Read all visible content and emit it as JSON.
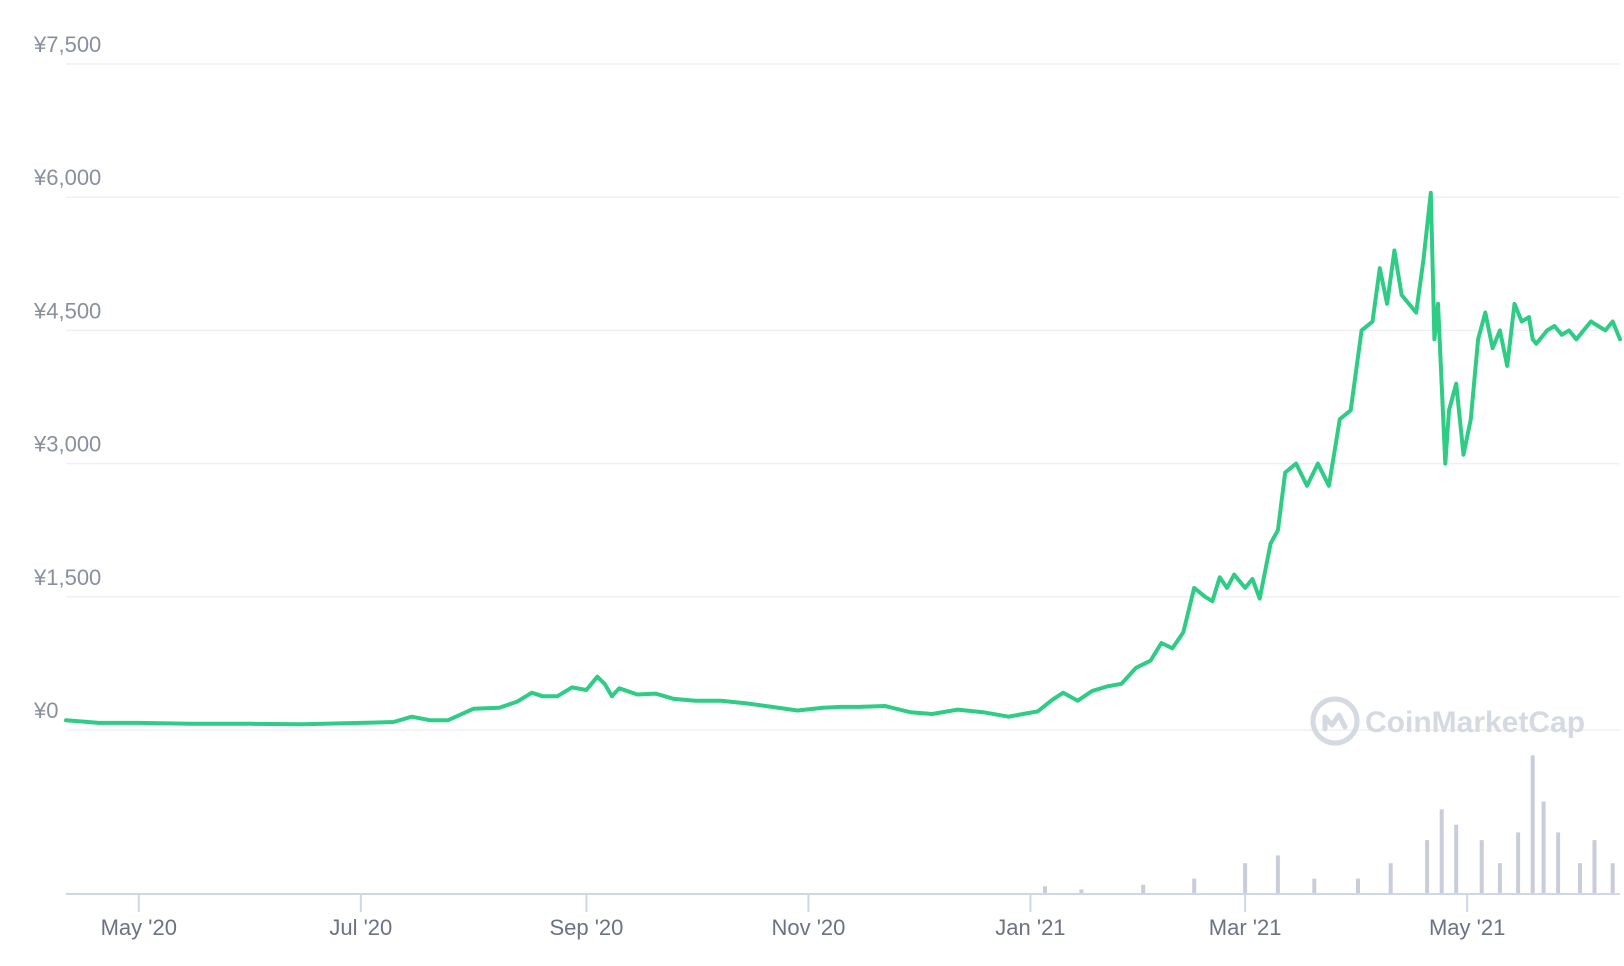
{
  "brand": {
    "name": "CoinMarketCap",
    "icon": "coinmarketcap-logo-icon"
  },
  "colors": {
    "line": "#2ecc85",
    "volume": "#c9cdd9",
    "grid": "#eef0f3",
    "axis": "#cfd6e4",
    "tick_text": "#8a8f9e"
  },
  "chart_data": {
    "type": "line",
    "title": "",
    "xlabel": "",
    "ylabel": "",
    "y_ticks": [
      "¥0",
      "¥1,500",
      "¥3,000",
      "¥4,500",
      "¥6,000",
      "¥7,500"
    ],
    "y_tick_values": [
      0,
      1500,
      3000,
      4500,
      6000,
      7500
    ],
    "x_ticks": [
      "May '20",
      "Jul '20",
      "Sep '20",
      "Nov '20",
      "Jan '21",
      "Mar '21",
      "May '21"
    ],
    "x_tick_dates": [
      "2020-05-01",
      "2020-07-01",
      "2020-09-01",
      "2020-11-01",
      "2021-01-01",
      "2021-03-01",
      "2021-05-01"
    ],
    "xlim": [
      "2020-04-11",
      "2021-06-12"
    ],
    "ylim": [
      0,
      7500
    ],
    "grid": true,
    "series": [
      {
        "type": "line",
        "x": [
          "2020-04-11",
          "2020-04-20",
          "2020-05-01",
          "2020-05-15",
          "2020-06-01",
          "2020-06-15",
          "2020-07-01",
          "2020-07-10",
          "2020-07-15",
          "2020-07-20",
          "2020-07-25",
          "2020-08-01",
          "2020-08-08",
          "2020-08-13",
          "2020-08-17",
          "2020-08-20",
          "2020-08-24",
          "2020-08-28",
          "2020-09-01",
          "2020-09-04",
          "2020-09-06",
          "2020-09-08",
          "2020-09-10",
          "2020-09-15",
          "2020-09-20",
          "2020-09-25",
          "2020-10-01",
          "2020-10-08",
          "2020-10-15",
          "2020-10-22",
          "2020-10-29",
          "2020-11-05",
          "2020-11-10",
          "2020-11-15",
          "2020-11-22",
          "2020-11-29",
          "2020-12-05",
          "2020-12-12",
          "2020-12-19",
          "2020-12-26",
          "2020-12-30",
          "2021-01-03",
          "2021-01-07",
          "2021-01-10",
          "2021-01-14",
          "2021-01-18",
          "2021-01-22",
          "2021-01-26",
          "2021-01-30",
          "2021-02-03",
          "2021-02-06",
          "2021-02-09",
          "2021-02-12",
          "2021-02-15",
          "2021-02-18",
          "2021-02-20",
          "2021-02-22",
          "2021-02-24",
          "2021-02-26",
          "2021-03-01",
          "2021-03-03",
          "2021-03-05",
          "2021-03-08",
          "2021-03-10",
          "2021-03-12",
          "2021-03-15",
          "2021-03-18",
          "2021-03-21",
          "2021-03-24",
          "2021-03-27",
          "2021-03-30",
          "2021-04-02",
          "2021-04-05",
          "2021-04-07",
          "2021-04-09",
          "2021-04-11",
          "2021-04-13",
          "2021-04-15",
          "2021-04-17",
          "2021-04-19",
          "2021-04-21",
          "2021-04-22",
          "2021-04-23",
          "2021-04-25",
          "2021-04-26",
          "2021-04-28",
          "2021-04-30",
          "2021-05-02",
          "2021-05-04",
          "2021-05-06",
          "2021-05-08",
          "2021-05-10",
          "2021-05-12",
          "2021-05-14",
          "2021-05-16",
          "2021-05-18",
          "2021-05-19",
          "2021-05-20",
          "2021-05-21",
          "2021-05-23",
          "2021-05-25",
          "2021-05-27",
          "2021-05-29",
          "2021-05-31",
          "2021-06-02",
          "2021-06-04",
          "2021-06-06",
          "2021-06-08",
          "2021-06-10",
          "2021-06-12"
        ],
        "y": [
          110,
          80,
          80,
          70,
          70,
          65,
          80,
          90,
          150,
          110,
          110,
          240,
          250,
          320,
          420,
          380,
          380,
          480,
          450,
          600,
          520,
          380,
          470,
          400,
          410,
          350,
          330,
          330,
          300,
          260,
          220,
          250,
          260,
          260,
          270,
          200,
          180,
          230,
          200,
          150,
          180,
          210,
          340,
          420,
          330,
          440,
          490,
          520,
          700,
          780,
          980,
          920,
          1100,
          1600,
          1500,
          1450,
          1720,
          1600,
          1750,
          1600,
          1700,
          1480,
          2100,
          2250,
          2900,
          3000,
          2750,
          3000,
          2750,
          3500,
          3600,
          4500,
          4600,
          5200,
          4800,
          5400,
          4900,
          4800,
          4700,
          5300,
          6050,
          4400,
          4800,
          3000,
          3600,
          3900,
          3100,
          3500,
          4400,
          4700,
          4300,
          4500,
          4100,
          4800,
          4600,
          4650,
          4400,
          4350,
          4400,
          4500,
          4550,
          4450,
          4500,
          4400,
          4500,
          4600,
          4550,
          4500,
          4600,
          4400
        ]
      },
      {
        "type": "volume",
        "name": "",
        "note": "",
        "x": [
          "2021-01-05",
          "2021-01-15",
          "2021-02-01",
          "2021-02-15",
          "2021-03-01",
          "2021-03-10",
          "2021-03-20",
          "2021-04-01",
          "2021-04-10",
          "2021-04-20",
          "2021-04-24",
          "2021-04-28",
          "2021-05-05",
          "2021-05-10",
          "2021-05-15",
          "2021-05-19",
          "2021-05-22",
          "2021-05-26",
          "2021-06-01",
          "2021-06-05",
          "2021-06-10"
        ],
        "y": [
          0.05,
          0.03,
          0.06,
          0.1,
          0.2,
          0.25,
          0.1,
          0.1,
          0.2,
          0.35,
          0.55,
          0.45,
          0.35,
          0.2,
          0.4,
          0.9,
          0.6,
          0.4,
          0.2,
          0.35,
          0.2
        ]
      }
    ]
  }
}
